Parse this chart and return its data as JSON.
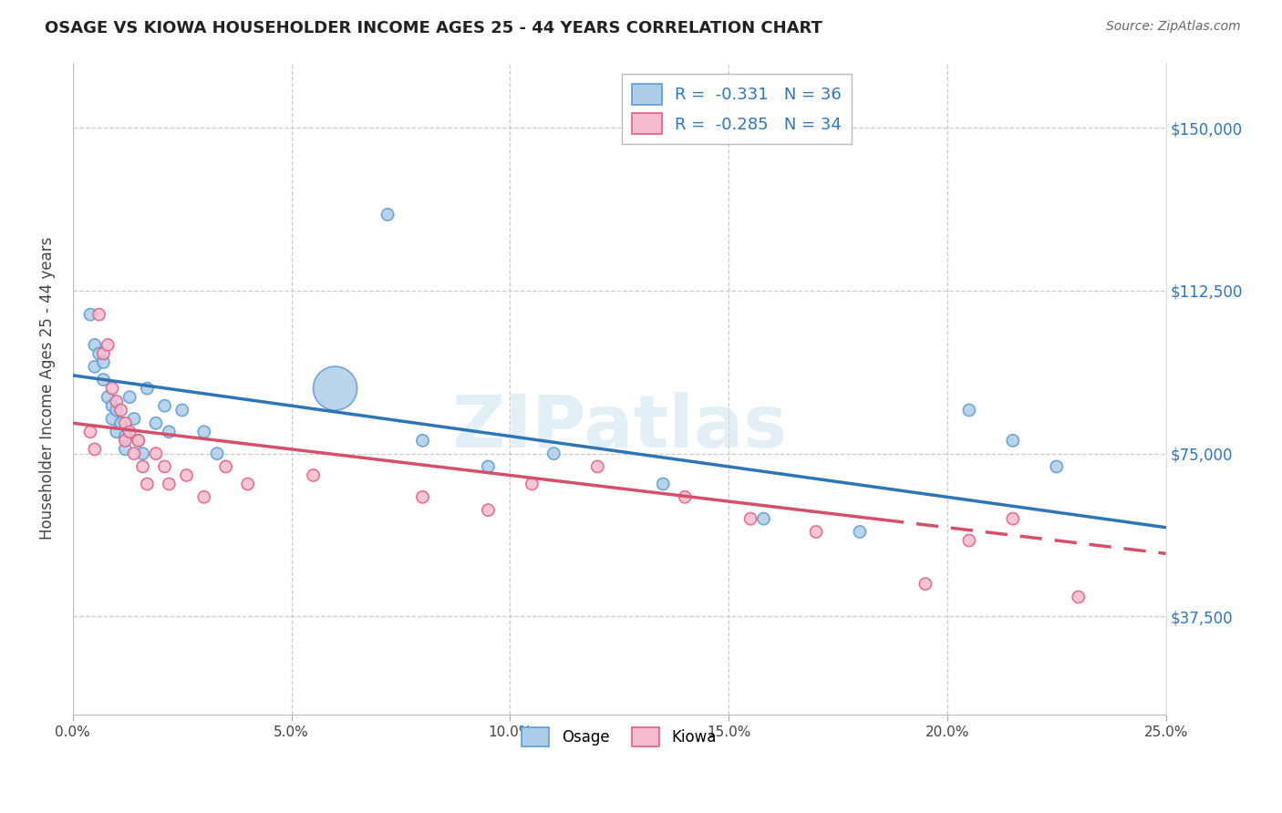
{
  "title": "OSAGE VS KIOWA HOUSEHOLDER INCOME AGES 25 - 44 YEARS CORRELATION CHART",
  "source": "Source: ZipAtlas.com",
  "ylabel": "Householder Income Ages 25 - 44 years",
  "xlim": [
    0.0,
    0.25
  ],
  "ylim": [
    15000,
    165000
  ],
  "xtick_labels": [
    "0.0%",
    "5.0%",
    "10.0%",
    "15.0%",
    "20.0%",
    "25.0%"
  ],
  "xtick_vals": [
    0.0,
    0.05,
    0.1,
    0.15,
    0.2,
    0.25
  ],
  "ytick_labels": [
    "$37,500",
    "$75,000",
    "$112,500",
    "$150,000"
  ],
  "ytick_vals": [
    37500,
    75000,
    112500,
    150000
  ],
  "watermark": "ZIPatlas",
  "legend_osage_r": "-0.331",
  "legend_osage_n": "36",
  "legend_kiowa_r": "-0.285",
  "legend_kiowa_n": "34",
  "osage_color": "#aecde8",
  "osage_edge": "#5b9bd5",
  "kiowa_color": "#f5bccf",
  "kiowa_edge": "#e06080",
  "trend_osage_color": "#2e75b6",
  "trend_kiowa_color": "#d4506a",
  "osage_x": [
    0.004,
    0.005,
    0.005,
    0.006,
    0.007,
    0.007,
    0.008,
    0.009,
    0.009,
    0.01,
    0.01,
    0.011,
    0.012,
    0.012,
    0.013,
    0.014,
    0.015,
    0.016,
    0.017,
    0.019,
    0.021,
    0.022,
    0.025,
    0.03,
    0.033,
    0.06,
    0.072,
    0.08,
    0.095,
    0.11,
    0.135,
    0.158,
    0.18,
    0.205,
    0.215,
    0.225
  ],
  "osage_y": [
    107000,
    100000,
    95000,
    98000,
    96000,
    92000,
    88000,
    86000,
    83000,
    85000,
    80000,
    82000,
    79000,
    76000,
    88000,
    83000,
    78000,
    75000,
    90000,
    82000,
    86000,
    80000,
    85000,
    80000,
    75000,
    90000,
    130000,
    78000,
    72000,
    75000,
    68000,
    60000,
    57000,
    85000,
    78000,
    72000
  ],
  "osage_size": [
    90,
    90,
    90,
    90,
    90,
    90,
    90,
    90,
    90,
    90,
    90,
    90,
    90,
    90,
    90,
    90,
    90,
    90,
    90,
    90,
    90,
    90,
    90,
    90,
    90,
    1200,
    90,
    90,
    90,
    90,
    90,
    90,
    90,
    90,
    90,
    90
  ],
  "kiowa_x": [
    0.004,
    0.005,
    0.006,
    0.007,
    0.008,
    0.009,
    0.01,
    0.011,
    0.012,
    0.012,
    0.013,
    0.014,
    0.015,
    0.016,
    0.017,
    0.019,
    0.021,
    0.022,
    0.026,
    0.03,
    0.035,
    0.04,
    0.055,
    0.08,
    0.095,
    0.105,
    0.12,
    0.14,
    0.155,
    0.17,
    0.195,
    0.205,
    0.215,
    0.23
  ],
  "kiowa_y": [
    80000,
    76000,
    107000,
    98000,
    100000,
    90000,
    87000,
    85000,
    82000,
    78000,
    80000,
    75000,
    78000,
    72000,
    68000,
    75000,
    72000,
    68000,
    70000,
    65000,
    72000,
    68000,
    70000,
    65000,
    62000,
    68000,
    72000,
    65000,
    60000,
    57000,
    45000,
    55000,
    60000,
    42000
  ],
  "kiowa_size": [
    90,
    90,
    90,
    90,
    90,
    90,
    90,
    90,
    90,
    90,
    90,
    90,
    90,
    90,
    90,
    90,
    90,
    90,
    90,
    90,
    90,
    90,
    90,
    90,
    90,
    90,
    90,
    90,
    90,
    90,
    90,
    90,
    90,
    90
  ],
  "trend_osage_x0": 0.0,
  "trend_osage_x1": 0.25,
  "trend_osage_y0": 93000,
  "trend_osage_y1": 58000,
  "trend_kiowa_x0": 0.0,
  "trend_kiowa_x1": 0.25,
  "trend_kiowa_y0": 82000,
  "trend_kiowa_y1": 52000,
  "trend_kiowa_solid_end": 0.185,
  "trend_kiowa_dash_start": 0.185
}
